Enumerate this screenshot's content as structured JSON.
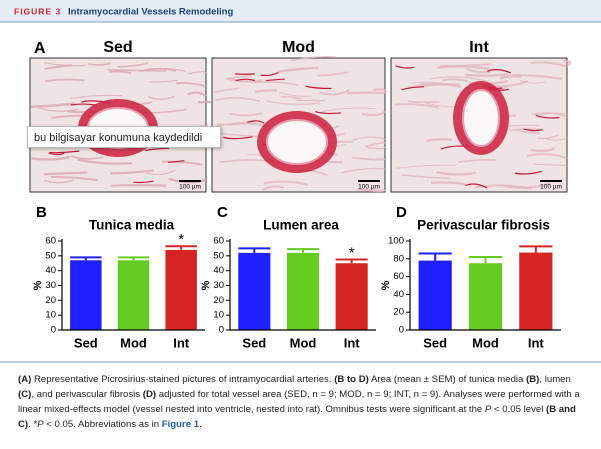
{
  "header": {
    "label": "FIGURE 3",
    "title": "Intramyocardial Vessels Remodeling"
  },
  "panel_a": {
    "label": "A",
    "columns": [
      "Sed",
      "Mod",
      "Int"
    ],
    "scale_bar": "100 µm"
  },
  "tooltip": "bu bilgisayar konumuna kaydedildi",
  "chart_data": [
    {
      "type": "bar",
      "panel": "B",
      "title": "Tunica media",
      "ylabel": "%",
      "categories": [
        "Sed",
        "Mod",
        "Int"
      ],
      "values": [
        47,
        47,
        54
      ],
      "errors": [
        2,
        2,
        2.5
      ],
      "colors": [
        "#1f1fff",
        "#66cc22",
        "#d42424"
      ],
      "ylim": [
        0,
        60
      ],
      "yticks": [
        0,
        10,
        20,
        30,
        40,
        50,
        60
      ],
      "annotations": [
        {
          "category": "Int",
          "text": "*"
        }
      ]
    },
    {
      "type": "bar",
      "panel": "C",
      "title": "Lumen area",
      "ylabel": "%",
      "categories": [
        "Sed",
        "Mod",
        "Int"
      ],
      "values": [
        52,
        52,
        45
      ],
      "errors": [
        3,
        2.5,
        2.5
      ],
      "colors": [
        "#1f1fff",
        "#66cc22",
        "#d42424"
      ],
      "ylim": [
        0,
        60
      ],
      "yticks": [
        0,
        10,
        20,
        30,
        40,
        50,
        60
      ],
      "annotations": [
        {
          "category": "Int",
          "text": "*"
        }
      ]
    },
    {
      "type": "bar",
      "panel": "D",
      "title": "Perivascular fibrosis",
      "ylabel": "%",
      "categories": [
        "Sed",
        "Mod",
        "Int"
      ],
      "values": [
        78,
        75,
        87
      ],
      "errors": [
        8,
        7,
        7
      ],
      "colors": [
        "#1f1fff",
        "#66cc22",
        "#d42424"
      ],
      "ylim": [
        0,
        100
      ],
      "yticks": [
        0,
        20,
        40,
        60,
        80,
        100
      ]
    }
  ],
  "caption": [
    {
      "text": "(A)",
      "style": "bold"
    },
    {
      "text": " Representative Picrosirius-stained pictures of intramyocardial arteries. "
    },
    {
      "text": "(B to D)",
      "style": "bold"
    },
    {
      "text": " Area (mean ± SEM) of tunica media "
    },
    {
      "text": "(B)",
      "style": "bold"
    },
    {
      "text": ", lumen "
    },
    {
      "text": "(C)",
      "style": "bold"
    },
    {
      "text": ", and perivascular fibrosis "
    },
    {
      "text": "(D)",
      "style": "bold"
    },
    {
      "text": " adjusted for total vessel area (SED, n = 9; MOD, n = 9; INT, n = 9). Analyses were performed with a linear mixed-effects model (vessel nested into ventricle, nested into rat). Omnibus tests were significant at the "
    },
    {
      "text": "P",
      "style": "italic"
    },
    {
      "text": " < 0.05 level "
    },
    {
      "text": "(B and C)",
      "style": "bold"
    },
    {
      "text": ". *"
    },
    {
      "text": "P",
      "style": "italic"
    },
    {
      "text": " < 0.05. Abbreviations as in "
    },
    {
      "text": "Figure 1",
      "style": "link"
    },
    {
      "text": "."
    }
  ]
}
